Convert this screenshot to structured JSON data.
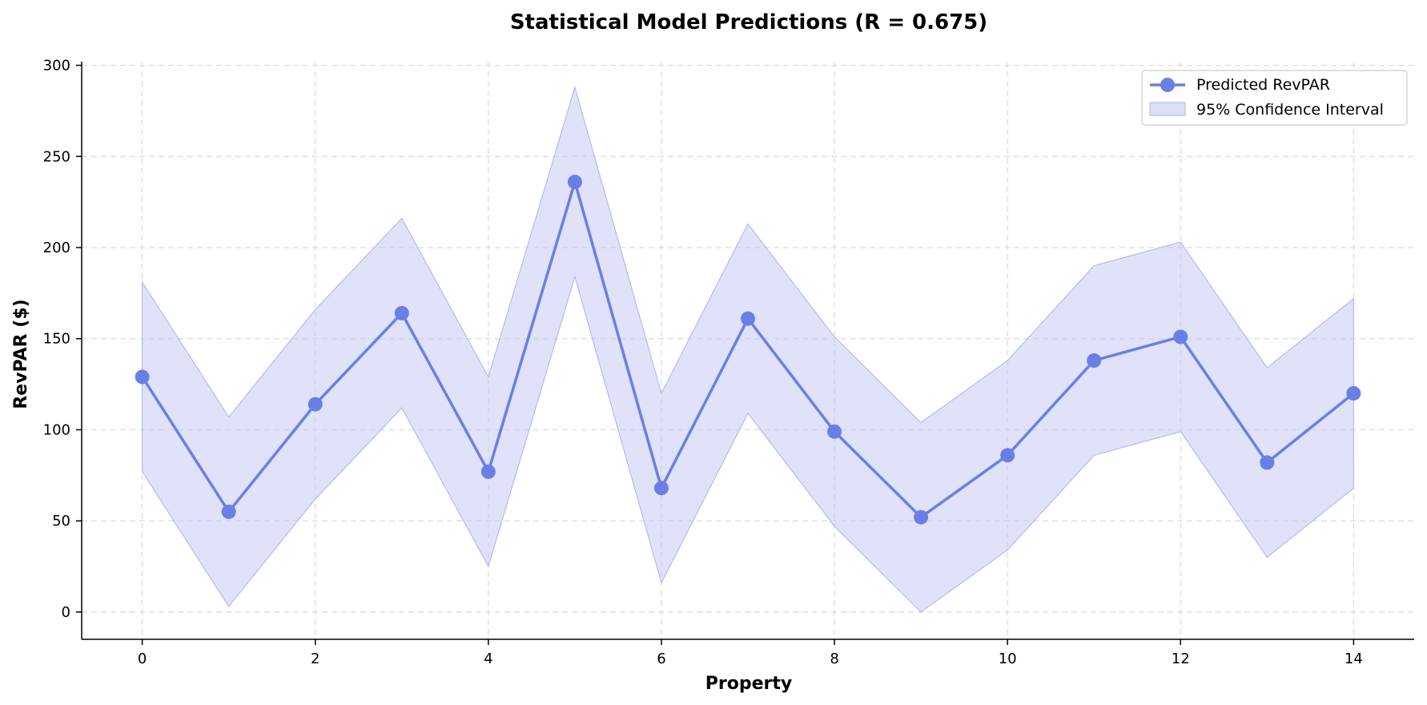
{
  "chart_data": {
    "type": "line",
    "title": "Statistical Model Predictions (R = 0.675)",
    "xlabel": "Property",
    "ylabel": "RevPAR ($)",
    "xlim": [
      -0.7,
      14.7
    ],
    "ylim": [
      -15,
      302
    ],
    "xticks": [
      0,
      2,
      4,
      6,
      8,
      10,
      12,
      14
    ],
    "yticks": [
      0,
      50,
      100,
      150,
      200,
      250,
      300
    ],
    "grid": true,
    "legend_position": "top-right",
    "x": [
      0,
      1,
      2,
      3,
      4,
      5,
      6,
      7,
      8,
      9,
      10,
      11,
      12,
      13,
      14
    ],
    "series": [
      {
        "name": "Predicted RevPAR",
        "color": "#6a7fe6",
        "values": [
          129,
          55,
          114,
          164,
          77,
          236,
          68,
          161,
          99,
          52,
          86,
          138,
          151,
          82,
          120
        ]
      }
    ],
    "confidence_band": {
      "name": "95% Confidence Interval",
      "color": "#c5cbf2",
      "lower": [
        77,
        3,
        62,
        112,
        25,
        184,
        16,
        109,
        47,
        0,
        34,
        86,
        99,
        30,
        68
      ],
      "upper": [
        181,
        107,
        166,
        216,
        129,
        288,
        120,
        213,
        151,
        104,
        138,
        190,
        203,
        134,
        172
      ]
    }
  }
}
